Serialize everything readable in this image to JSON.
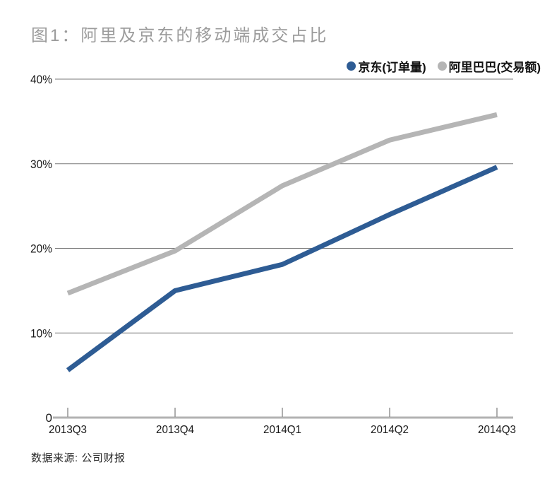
{
  "title": "图1：阿里及京东的移动端成交占比",
  "source": "数据来源: 公司财报",
  "colors": {
    "title": "#9b9b9b",
    "legend_text": "#111111",
    "jd_blue": "#2e5c94",
    "ali_gray": "#b5b5b5",
    "gridline": "#7a7a7a",
    "axis_line": "#b2b2b2",
    "tick": "#8c8c8c",
    "axis_label": "#1a1a1a"
  },
  "chart_data": {
    "type": "line",
    "title": "图1：阿里及京东的移动端成交占比",
    "categories": [
      "2013Q3",
      "2013Q4",
      "2014Q1",
      "2014Q2",
      "2014Q3"
    ],
    "series": [
      {
        "name": "京东(订单量)",
        "color": "#2e5c94",
        "values": [
          5.6,
          15.0,
          18.1,
          24.0,
          29.6
        ]
      },
      {
        "name": "阿里巴巴(交易额)",
        "color": "#b5b5b5",
        "values": [
          14.7,
          19.7,
          27.4,
          32.8,
          35.8
        ]
      }
    ],
    "xlabel": "",
    "ylabel": "",
    "ylim": [
      0,
      40
    ],
    "yticks": [
      0,
      10,
      20,
      30,
      40
    ],
    "ytick_labels": [
      "0",
      "10%",
      "20%",
      "30%",
      "40%"
    ],
    "grid": "horizontal-only",
    "legend_position": "top-right",
    "source": "数据来源: 公司财报"
  }
}
